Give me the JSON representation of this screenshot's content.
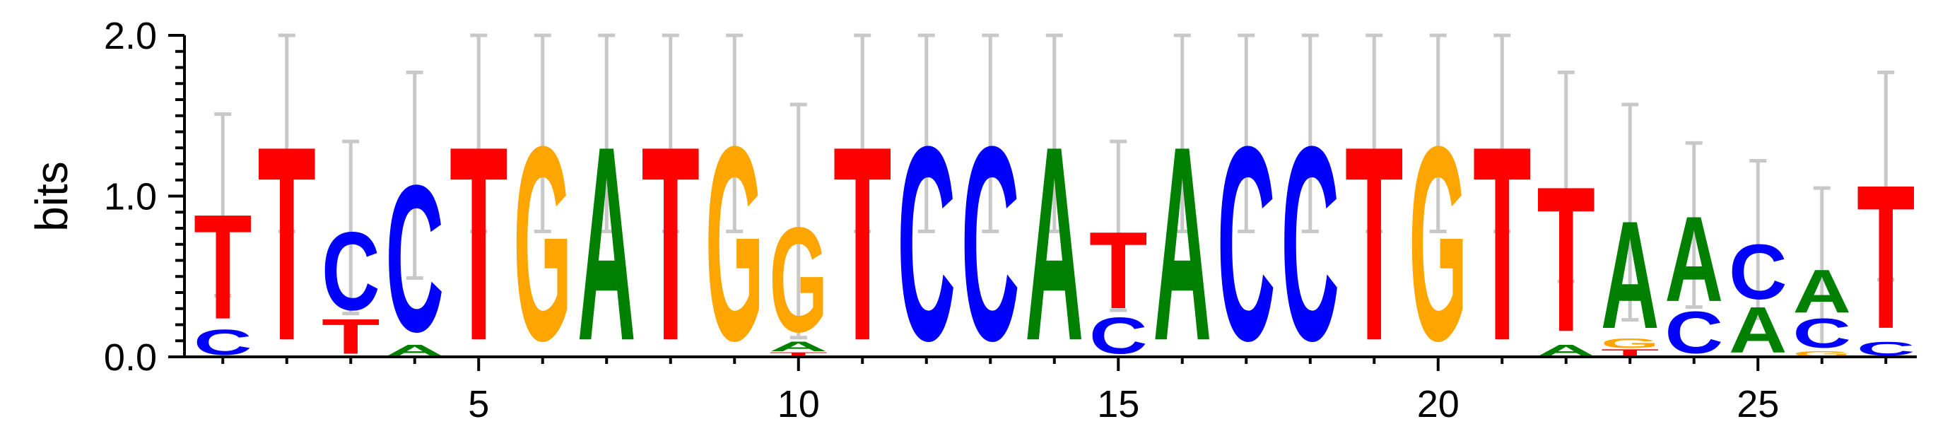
{
  "chart_data": {
    "type": "sequence-logo",
    "ylabel": "bits",
    "ylim": [
      0,
      2
    ],
    "yticks": [
      "0.0",
      "1.0",
      "2.0"
    ],
    "xticks": [
      "5",
      "10",
      "15",
      "20",
      "25"
    ],
    "positions": 27,
    "colors": {
      "A": "#008000",
      "C": "#0000ff",
      "G": "#ffa500",
      "T": "#ff0000"
    },
    "columns": [
      {
        "pos": 1,
        "stack": [
          {
            "l": "C",
            "h": 0.18
          },
          {
            "l": "T",
            "h": 0.75
          }
        ],
        "err": [
          0.38,
          1.51
        ]
      },
      {
        "pos": 2,
        "stack": [
          {
            "l": "T",
            "h": 1.39
          }
        ],
        "err": [
          0.78,
          2.0
        ]
      },
      {
        "pos": 3,
        "stack": [
          {
            "l": "T",
            "h": 0.25
          },
          {
            "l": "C",
            "h": 0.56
          }
        ],
        "err": [
          0.27,
          1.34
        ]
      },
      {
        "pos": 4,
        "stack": [
          {
            "l": "A",
            "h": 0.08
          },
          {
            "l": "C",
            "h": 1.05
          }
        ],
        "err": [
          0.49,
          1.77
        ]
      },
      {
        "pos": 5,
        "stack": [
          {
            "l": "T",
            "h": 1.39
          }
        ],
        "err": [
          0.78,
          2.0
        ]
      },
      {
        "pos": 6,
        "stack": [
          {
            "l": "G",
            "h": 1.39
          }
        ],
        "err": [
          0.78,
          2.0
        ]
      },
      {
        "pos": 7,
        "stack": [
          {
            "l": "A",
            "h": 1.39
          }
        ],
        "err": [
          0.78,
          2.0
        ]
      },
      {
        "pos": 8,
        "stack": [
          {
            "l": "T",
            "h": 1.39
          }
        ],
        "err": [
          0.78,
          2.0
        ]
      },
      {
        "pos": 9,
        "stack": [
          {
            "l": "G",
            "h": 1.39
          }
        ],
        "err": [
          0.78,
          2.0
        ]
      },
      {
        "pos": 10,
        "stack": [
          {
            "l": "T",
            "h": 0.03
          },
          {
            "l": "A",
            "h": 0.07
          },
          {
            "l": "G",
            "h": 0.75
          }
        ],
        "err": [
          0.12,
          1.57
        ]
      },
      {
        "pos": 11,
        "stack": [
          {
            "l": "T",
            "h": 1.39
          }
        ],
        "err": [
          0.78,
          2.0
        ]
      },
      {
        "pos": 12,
        "stack": [
          {
            "l": "C",
            "h": 1.39
          }
        ],
        "err": [
          0.78,
          2.0
        ]
      },
      {
        "pos": 13,
        "stack": [
          {
            "l": "C",
            "h": 1.39
          }
        ],
        "err": [
          0.78,
          2.0
        ]
      },
      {
        "pos": 14,
        "stack": [
          {
            "l": "A",
            "h": 1.39
          }
        ],
        "err": [
          0.78,
          2.0
        ]
      },
      {
        "pos": 15,
        "stack": [
          {
            "l": "C",
            "h": 0.26
          },
          {
            "l": "T",
            "h": 0.55
          }
        ],
        "err": [
          0.29,
          1.34
        ]
      },
      {
        "pos": 16,
        "stack": [
          {
            "l": "A",
            "h": 1.39
          }
        ],
        "err": [
          0.78,
          2.0
        ]
      },
      {
        "pos": 17,
        "stack": [
          {
            "l": "C",
            "h": 1.39
          }
        ],
        "err": [
          0.78,
          2.0
        ]
      },
      {
        "pos": 18,
        "stack": [
          {
            "l": "C",
            "h": 1.39
          }
        ],
        "err": [
          0.78,
          2.0
        ]
      },
      {
        "pos": 19,
        "stack": [
          {
            "l": "T",
            "h": 1.39
          }
        ],
        "err": [
          0.78,
          2.0
        ]
      },
      {
        "pos": 20,
        "stack": [
          {
            "l": "G",
            "h": 1.39
          }
        ],
        "err": [
          0.78,
          2.0
        ]
      },
      {
        "pos": 21,
        "stack": [
          {
            "l": "T",
            "h": 1.39
          }
        ],
        "err": [
          0.78,
          2.0
        ]
      },
      {
        "pos": 22,
        "stack": [
          {
            "l": "A",
            "h": 0.08
          },
          {
            "l": "T",
            "h": 1.04
          }
        ],
        "err": [
          0.47,
          1.77
        ]
      },
      {
        "pos": 23,
        "stack": [
          {
            "l": "T",
            "h": 0.05
          },
          {
            "l": "G",
            "h": 0.07
          },
          {
            "l": "A",
            "h": 0.77
          }
        ],
        "err": [
          0.23,
          1.57
        ]
      },
      {
        "pos": 24,
        "stack": [
          {
            "l": "C",
            "h": 0.3
          },
          {
            "l": "A",
            "h": 0.61
          }
        ],
        "err": [
          0.31,
          1.33
        ]
      },
      {
        "pos": 25,
        "stack": [
          {
            "l": "A",
            "h": 0.33
          },
          {
            "l": "C",
            "h": 0.39
          }
        ],
        "err": [
          0.24,
          1.22
        ]
      },
      {
        "pos": 26,
        "stack": [
          {
            "l": "G",
            "h": 0.04
          },
          {
            "l": "C",
            "h": 0.21
          },
          {
            "l": "A",
            "h": 0.31
          }
        ],
        "err": [
          0.07,
          1.05
        ]
      },
      {
        "pos": 27,
        "stack": [
          {
            "l": "C",
            "h": 0.1
          },
          {
            "l": "T",
            "h": 1.03
          }
        ],
        "err": [
          0.48,
          1.77
        ]
      }
    ]
  }
}
